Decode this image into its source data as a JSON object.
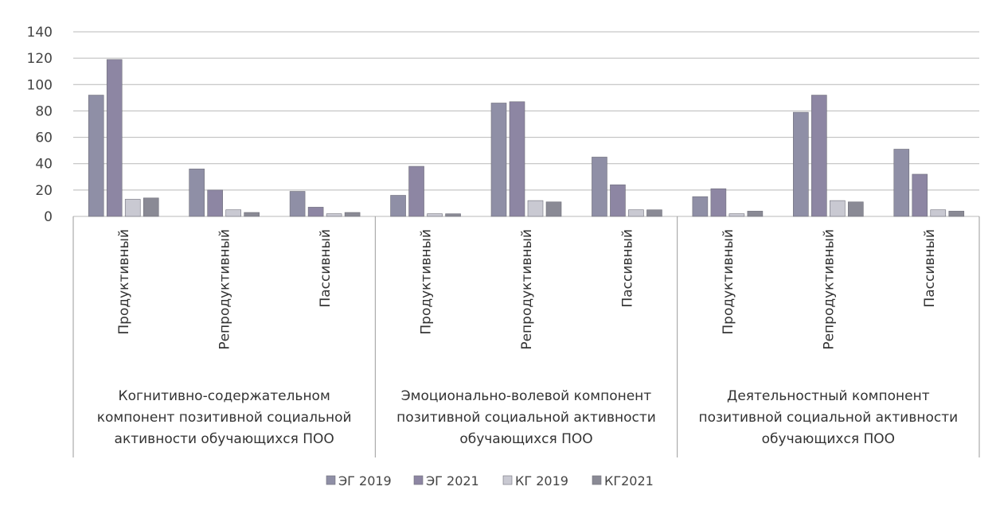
{
  "chart_data": {
    "type": "bar",
    "ylim": [
      0,
      140
    ],
    "yticks": [
      0,
      20,
      40,
      60,
      80,
      100,
      120,
      140
    ],
    "grid": true,
    "legend_position": "bottom",
    "groups": [
      {
        "label_lines": [
          "Когнитивно-содержательном",
          "компонент позитивной социальной",
          "активности обучающихся ПОО"
        ],
        "categories": [
          "Продуктивный",
          "Репродуктивный",
          "Пассивный"
        ]
      },
      {
        "label_lines": [
          "Эмоционально-волевой компонент",
          "позитивной социальной активности",
          "обучающихся ПОО"
        ],
        "categories": [
          "Продуктивный",
          "Репродуктивный",
          "Пассивный"
        ]
      },
      {
        "label_lines": [
          "Деятельностный компонент",
          "позитивной социальной активности",
          "обучающихся ПОО"
        ],
        "categories": [
          "Продуктивный",
          "Репродуктивный",
          "Пассивный"
        ]
      }
    ],
    "series": [
      {
        "name": "ЭГ 2019",
        "color": "#8f8fa6",
        "values": [
          92,
          36,
          19,
          16,
          86,
          45,
          15,
          79,
          51
        ]
      },
      {
        "name": "ЭГ 2021",
        "color": "#8d86a3",
        "values": [
          119,
          20,
          7,
          38,
          87,
          24,
          21,
          92,
          32
        ]
      },
      {
        "name": "КГ 2019",
        "color": "#c9c9d2",
        "values": [
          13,
          5,
          2,
          2,
          12,
          5,
          2,
          12,
          5
        ]
      },
      {
        "name": "КГ2021",
        "color": "#8a8a95",
        "values": [
          14,
          3,
          3,
          2,
          11,
          5,
          4,
          11,
          4
        ]
      }
    ]
  }
}
